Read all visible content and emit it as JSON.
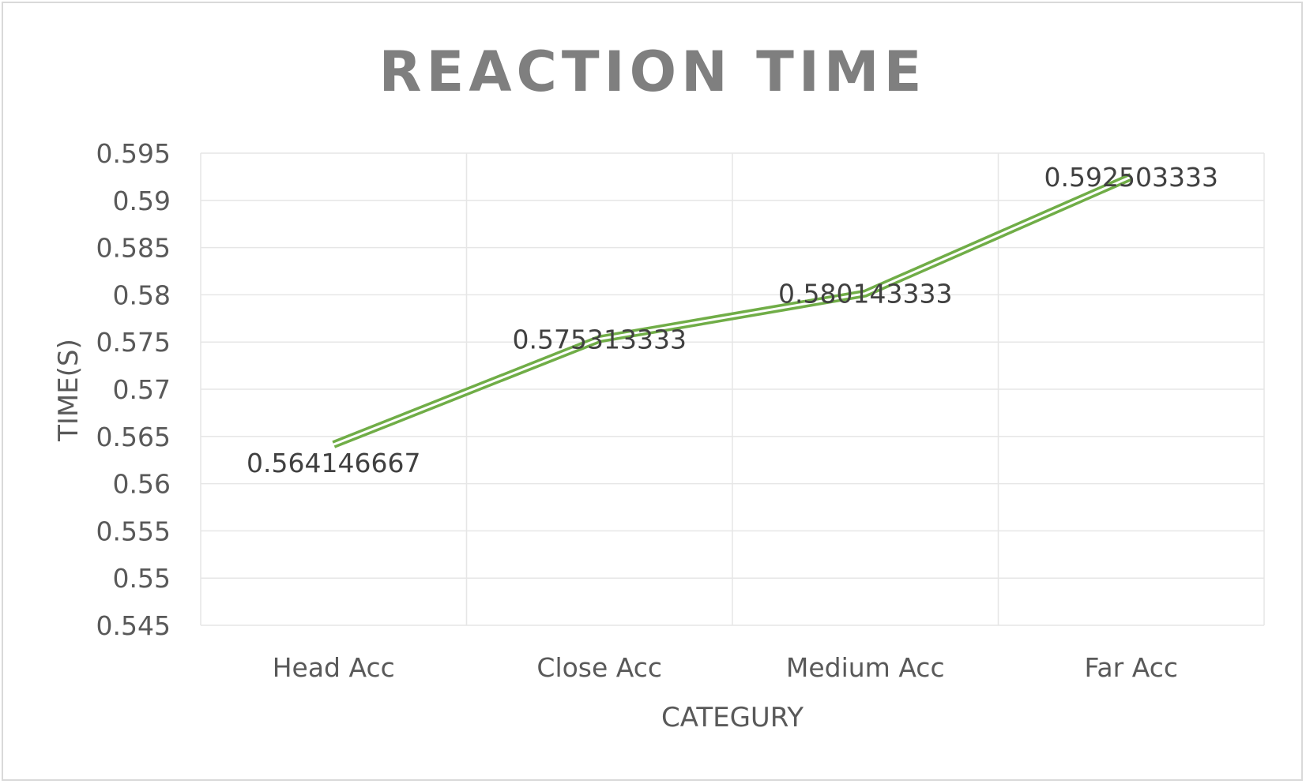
{
  "chart_data": {
    "type": "line",
    "title": "REACTION TIME",
    "xlabel": "CATEGURY",
    "ylabel": "TIME(S)",
    "categories": [
      "Head Acc",
      "Close Acc",
      "Medium Acc",
      "Far Acc"
    ],
    "series": [
      {
        "values": [
          0.564146667,
          0.575313333,
          0.580143333,
          0.592503333
        ],
        "labels": [
          "0.564146667",
          "0.575313333",
          "0.580143333",
          "0.592503333"
        ],
        "color": "#70ad47"
      }
    ],
    "ylim": [
      0.545,
      0.595
    ],
    "yticks": [
      "0.545",
      "0.55",
      "0.555",
      "0.56",
      "0.565",
      "0.57",
      "0.575",
      "0.58",
      "0.585",
      "0.59",
      "0.595"
    ],
    "grid": true,
    "legend": "none",
    "line_style": "double"
  }
}
